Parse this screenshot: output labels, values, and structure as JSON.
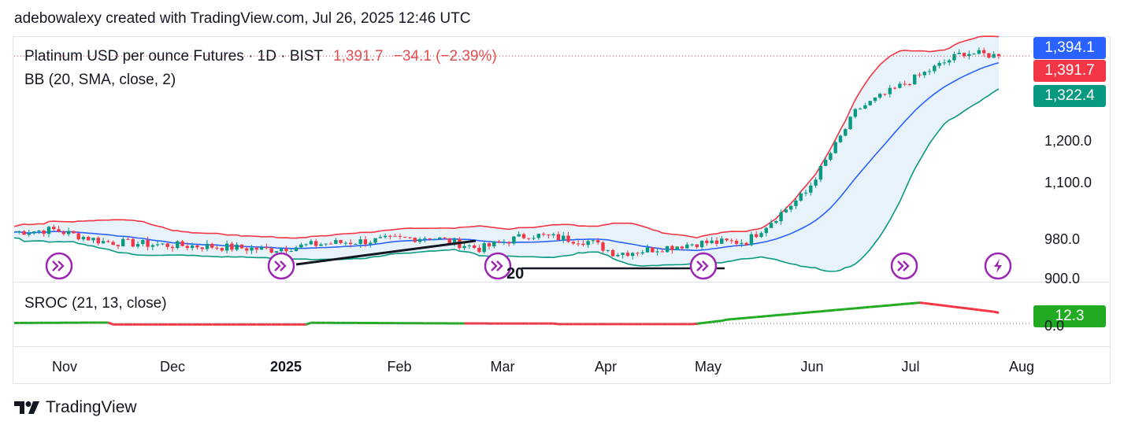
{
  "header": {
    "text": "adebowalexy created with TradingView.com, Jul 26, 2025 12:46 UTC"
  },
  "legend": {
    "symbol": "Platinum USD per ounce Futures · 1D · BIST",
    "price": "1,391.7",
    "change": "−34.1 (−2.39%)",
    "indicator": "BB (20, SMA, close, 2)",
    "sroc": "SROC (21, 13, close)"
  },
  "price_tags": {
    "upper": {
      "label": "1,394.1",
      "color": "#2962ff"
    },
    "last": {
      "label": "1,391.7",
      "color": "#f23645"
    },
    "lower": {
      "label": "1,322.4",
      "color": "#089981"
    },
    "sroc": {
      "label": "12.3",
      "color": "#22ab22"
    }
  },
  "price_axis": {
    "ticks": [
      "1,200.0",
      "1,100.0",
      "980.0",
      "900.0"
    ],
    "sroc_tick": "0.0"
  },
  "time_axis": {
    "ticks": [
      "Nov",
      "Dec",
      "2025",
      "Feb",
      "Mar",
      "Apr",
      "May",
      "Jun",
      "Jul",
      "Aug"
    ],
    "bold": "2025"
  },
  "annotation_label": "20",
  "footer": {
    "brand": "TradingView"
  },
  "colors": {
    "up": "#089981",
    "down": "#f23645",
    "basis": "#2962ff",
    "upper_band": "#f23645",
    "lower_band": "#089981",
    "band_fill": "#e8f2fb",
    "event_icon": "#9c27b0",
    "sroc_up": "#22ab22",
    "sroc_down": "#f23645"
  },
  "chart_data": {
    "type": "line",
    "title": "Platinum USD per ounce Futures · 1D · BIST",
    "x": [
      "2024-10-21",
      "2024-11-01",
      "2024-11-15",
      "2024-12-01",
      "2024-12-15",
      "2025-01-01",
      "2025-01-15",
      "2025-02-01",
      "2025-02-15",
      "2025-03-01",
      "2025-03-15",
      "2025-04-01",
      "2025-04-08",
      "2025-04-15",
      "2025-05-01",
      "2025-05-15",
      "2025-06-01",
      "2025-06-15",
      "2025-07-01",
      "2025-07-15",
      "2025-07-25"
    ],
    "series": [
      {
        "values": [
          995,
          1000,
          975,
          968,
          965,
          958,
          970,
          978,
          985,
          960,
          990,
          975,
          950,
          955,
          972,
          975,
          1080,
          1270,
          1340,
          1400,
          1392
        ]
      },
      {
        "name": "BB (20, SMA, close, 2)",
        "values": [
          985,
          992,
          975,
          967,
          962,
          958,
          970,
          980,
          985,
          978,
          985,
          978,
          970,
          960,
          958,
          968,
          1020,
          1160,
          1300,
          1360,
          1394
        ]
      }
    ],
    "price_range": [
      880,
      1420
    ],
    "price_ticks": [
      900,
      980,
      1100,
      1200
    ],
    "sroc_value": 12.3
  }
}
